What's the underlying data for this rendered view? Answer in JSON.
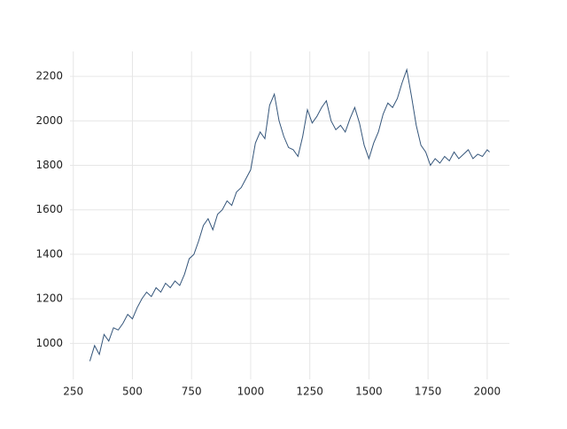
{
  "chart_data": {
    "type": "line",
    "x": [
      320,
      340,
      360,
      380,
      400,
      420,
      440,
      460,
      480,
      500,
      520,
      540,
      560,
      580,
      600,
      620,
      640,
      660,
      680,
      700,
      720,
      740,
      760,
      780,
      800,
      820,
      840,
      860,
      880,
      900,
      920,
      940,
      960,
      980,
      1000,
      1020,
      1040,
      1060,
      1080,
      1100,
      1120,
      1140,
      1160,
      1180,
      1200,
      1220,
      1240,
      1260,
      1280,
      1300,
      1320,
      1340,
      1360,
      1380,
      1400,
      1420,
      1440,
      1460,
      1480,
      1500,
      1520,
      1540,
      1560,
      1580,
      1600,
      1620,
      1640,
      1660,
      1680,
      1700,
      1720,
      1740,
      1760,
      1780,
      1800,
      1820,
      1840,
      1860,
      1880,
      1900,
      1920,
      1940,
      1960,
      1980,
      2000,
      2010
    ],
    "series": [
      {
        "color": "#34557a",
        "values": [
          920,
          990,
          950,
          1040,
          1010,
          1070,
          1060,
          1090,
          1130,
          1110,
          1160,
          1200,
          1230,
          1210,
          1250,
          1230,
          1270,
          1250,
          1280,
          1260,
          1310,
          1380,
          1400,
          1460,
          1530,
          1560,
          1510,
          1580,
          1600,
          1640,
          1620,
          1680,
          1700,
          1740,
          1780,
          1900,
          1950,
          1920,
          2070,
          2120,
          2000,
          1930,
          1880,
          1870,
          1840,
          1930,
          2050,
          1990,
          2020,
          2060,
          2090,
          2000,
          1960,
          1980,
          1950,
          2010,
          2060,
          1990,
          1890,
          1830,
          1900,
          1950,
          2030,
          2080,
          2060,
          2100,
          2170,
          2230,
          2110,
          1980,
          1890,
          1860,
          1800,
          1830,
          1810,
          1840,
          1820,
          1860,
          1830,
          1850,
          1870,
          1830,
          1850,
          1840,
          1870,
          1860
        ]
      }
    ],
    "xlim": [
      236,
      2094
    ],
    "ylim": [
      838,
      2312
    ],
    "xticks": [
      250,
      500,
      750,
      1000,
      1250,
      1500,
      1750,
      2000
    ],
    "yticks": [
      1000,
      1200,
      1400,
      1600,
      1800,
      2000,
      2200
    ],
    "grid": true
  }
}
